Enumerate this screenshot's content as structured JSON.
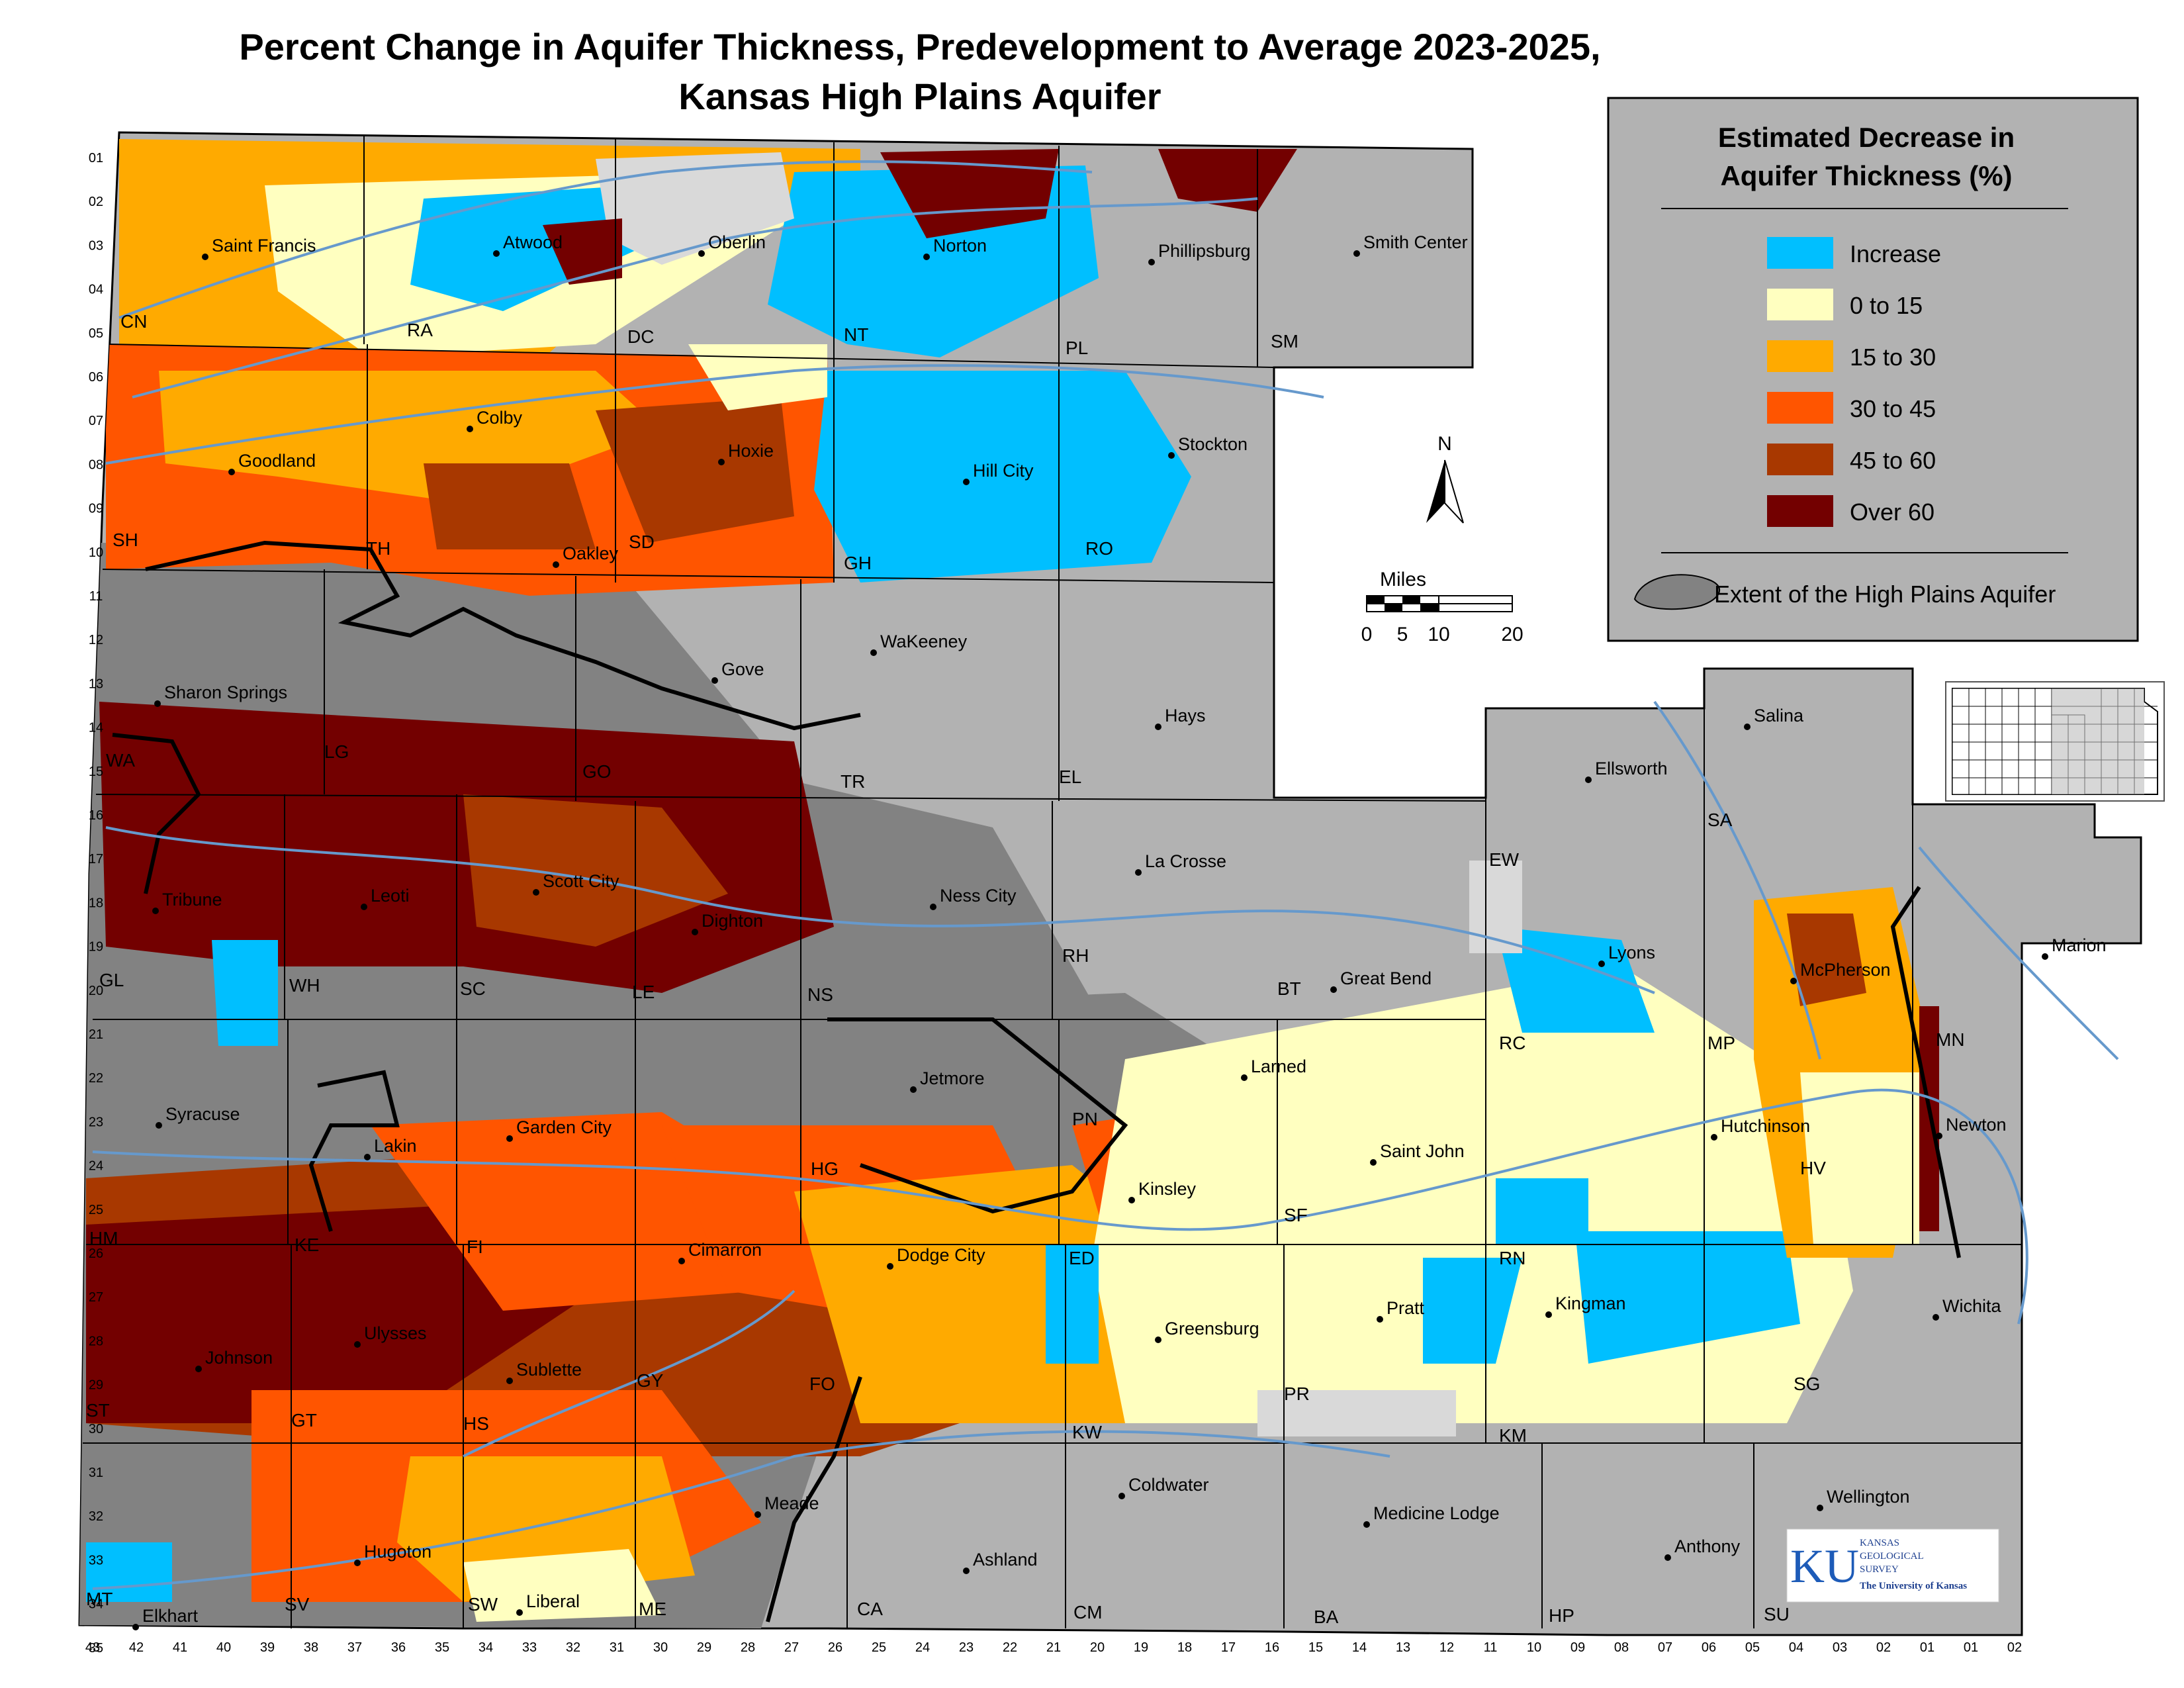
{
  "title": {
    "line1": "Percent Change in Aquifer Thickness, Predevelopment to Average 2023-2025,",
    "line2": "Kansas High Plains Aquifer"
  },
  "legend": {
    "title_line1": "Estimated Decrease in",
    "title_line2": "Aquifer Thickness (%)",
    "classes": [
      {
        "label": "Increase",
        "color": "#00bfff"
      },
      {
        "label": "0 to 15",
        "color": "#ffffc0"
      },
      {
        "label": "15 to 30",
        "color": "#ffaa00"
      },
      {
        "label": "30 to 45",
        "color": "#ff5500"
      },
      {
        "label": "45 to 60",
        "color": "#a83800"
      },
      {
        "label": "Over 60",
        "color": "#730000"
      }
    ],
    "extent_label": "Extent of the High Plains Aquifer",
    "extent_color": "#828282"
  },
  "colors": {
    "background_county": "#b2b2b2",
    "aquifer_no_data": "#828282",
    "river": "#6699cc",
    "legend_bg": "#b2b2b2"
  },
  "north_arrow": {
    "label": "N"
  },
  "scale_bar": {
    "title": "Miles",
    "ticks": [
      "0",
      "5",
      "10",
      "20"
    ]
  },
  "row_ticks": [
    "01",
    "02",
    "03",
    "04",
    "05",
    "06",
    "07",
    "08",
    "09",
    "10",
    "11",
    "12",
    "13",
    "14",
    "15",
    "16",
    "17",
    "18",
    "19",
    "20",
    "21",
    "22",
    "23",
    "24",
    "25",
    "26",
    "27",
    "28",
    "29",
    "30",
    "31",
    "32",
    "33",
    "34",
    "35"
  ],
  "range_ticks": [
    "43",
    "42",
    "41",
    "40",
    "39",
    "38",
    "37",
    "36",
    "35",
    "34",
    "33",
    "32",
    "31",
    "30",
    "29",
    "28",
    "27",
    "26",
    "25",
    "24",
    "23",
    "22",
    "21",
    "20",
    "19",
    "18",
    "17",
    "16",
    "15",
    "14",
    "13",
    "12",
    "11",
    "10",
    "09",
    "08",
    "07",
    "06",
    "05",
    "04",
    "03",
    "02",
    "01",
    "01",
    "02"
  ],
  "cities": [
    "Saint Francis",
    "Atwood",
    "Oberlin",
    "Norton",
    "Phillipsburg",
    "Smith Center",
    "Colby",
    "Goodland",
    "Hoxie",
    "Stockton",
    "Hill City",
    "Oakley",
    "WaKeeney",
    "Gove",
    "Sharon Springs",
    "Hays",
    "Salina",
    "Ellsworth",
    "Leoti",
    "Tribune",
    "Scott City",
    "Dighton",
    "Ness City",
    "La Crosse",
    "Lyons",
    "McPherson",
    "Marion",
    "Great Bend",
    "Jetmore",
    "Larned",
    "Hutchinson",
    "Newton",
    "Syracuse",
    "Lakin",
    "Garden City",
    "Saint John",
    "Kinsley",
    "Cimarron",
    "Dodge City",
    "Pratt",
    "Kingman",
    "Wichita",
    "Johnson",
    "Ulysses",
    "Greensburg",
    "Sublette",
    "Meade",
    "Coldwater",
    "Medicine Lodge",
    "Wellington",
    "Hugoton",
    "Ashland",
    "Anthony",
    "Elkhart",
    "Liberal"
  ],
  "counties": [
    "CN",
    "RA",
    "DC",
    "NT",
    "PL",
    "SM",
    "SH",
    "TH",
    "SD",
    "GH",
    "RO",
    "WA",
    "LG",
    "GO",
    "TR",
    "EL",
    "GL",
    "WH",
    "SC",
    "LE",
    "NS",
    "RH",
    "BT",
    "RC",
    "MP",
    "MN",
    "EW",
    "SA",
    "HM",
    "KE",
    "FI",
    "HG",
    "PN",
    "ED",
    "SF",
    "RN",
    "HV",
    "ST",
    "GT",
    "HS",
    "GY",
    "FO",
    "KW",
    "PR",
    "KM",
    "SG",
    "MT",
    "SV",
    "SW",
    "ME",
    "CA",
    "CM",
    "BA",
    "HP",
    "SU"
  ],
  "logo": {
    "initials": "KU",
    "line1": "KANSAS",
    "line2": "GEOLOGICAL",
    "line3": "SURVEY",
    "line4": "The University of Kansas"
  }
}
